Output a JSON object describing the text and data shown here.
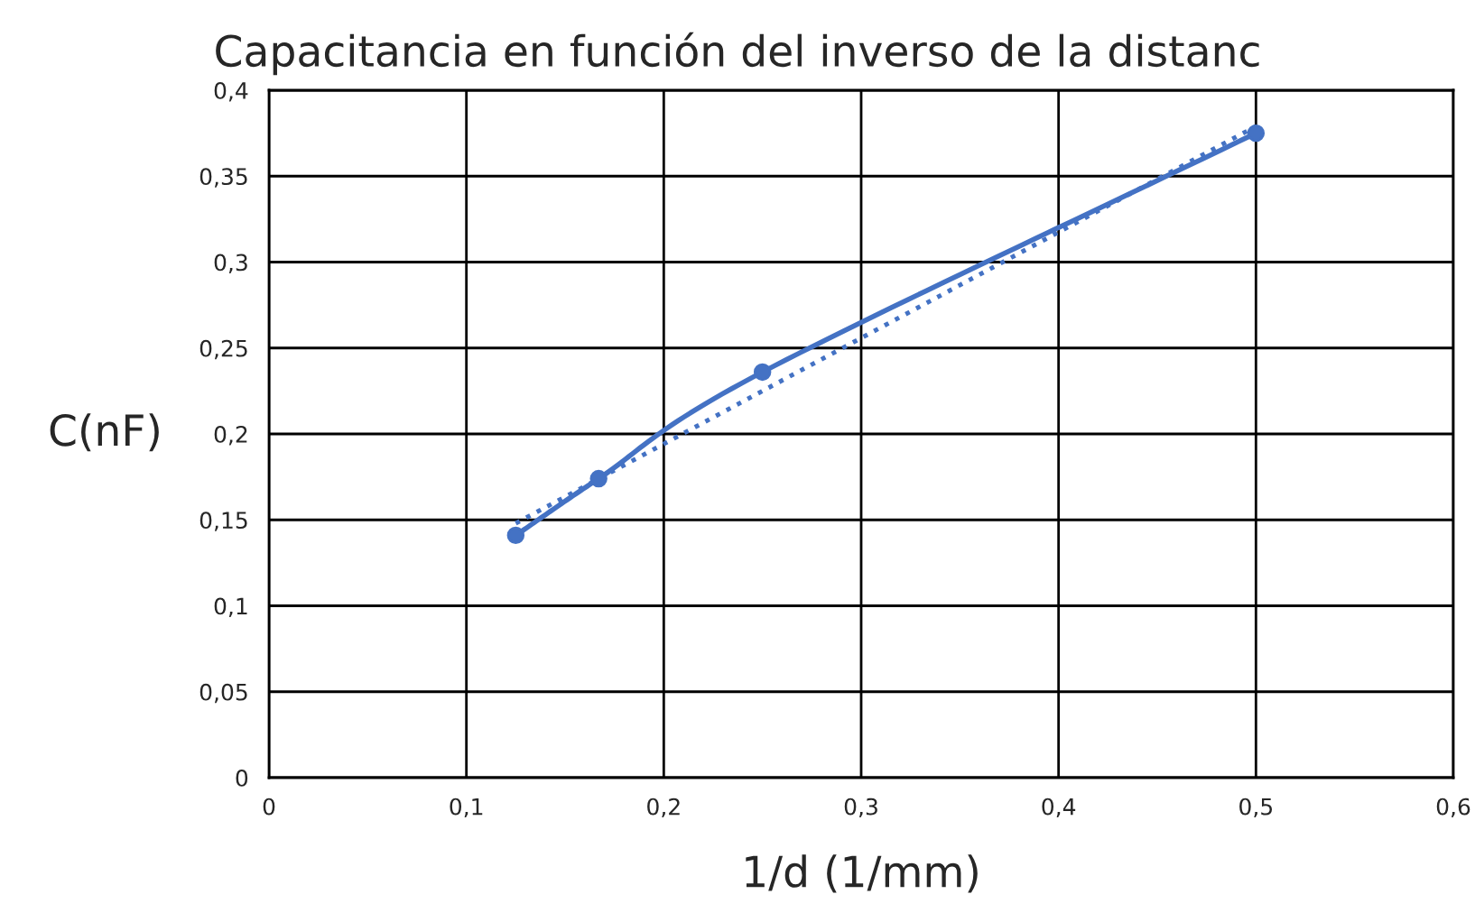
{
  "chart_data": {
    "type": "line",
    "title": "Capacitancia en función del inverso de la distanc",
    "xlabel": "1/d (1/mm)",
    "ylabel": "C(nF)",
    "series": [
      {
        "color": "#4472c4",
        "x": [
          0.125,
          0.167,
          0.25,
          0.5
        ],
        "values": [
          0.141,
          0.174,
          0.236,
          0.375
        ],
        "marker": "circle",
        "line_style": "solid"
      },
      {
        "color": "#4472c4",
        "x": [
          0.125,
          0.5
        ],
        "values": [
          0.148,
          0.379
        ],
        "marker": "none",
        "line_style": "dotted"
      }
    ],
    "xlim": [
      0,
      0.6
    ],
    "xticks": [
      0,
      {
        "value": 0.1,
        "label": "0,1"
      },
      {
        "value": 0.2,
        "label": "0,2"
      },
      {
        "value": 0.3,
        "label": "0,3"
      },
      {
        "value": 0.4,
        "label": "0,4"
      },
      {
        "value": 0.5,
        "label": "0,5"
      },
      {
        "value": 0.6,
        "label": "0,6"
      }
    ],
    "ylim": [
      0,
      0.4
    ],
    "yticks": [
      0,
      {
        "value": 0.05,
        "label": "0,05"
      },
      {
        "value": 0.1,
        "label": "0,1"
      },
      {
        "value": 0.15,
        "label": "0,15"
      },
      {
        "value": 0.2,
        "label": "0,2"
      },
      {
        "value": 0.25,
        "label": "0,25"
      },
      {
        "value": 0.3,
        "label": "0,3"
      },
      {
        "value": 0.35,
        "label": "0,35"
      },
      {
        "value": 0.4,
        "label": "0,4"
      }
    ],
    "grid": true,
    "legend": false
  }
}
